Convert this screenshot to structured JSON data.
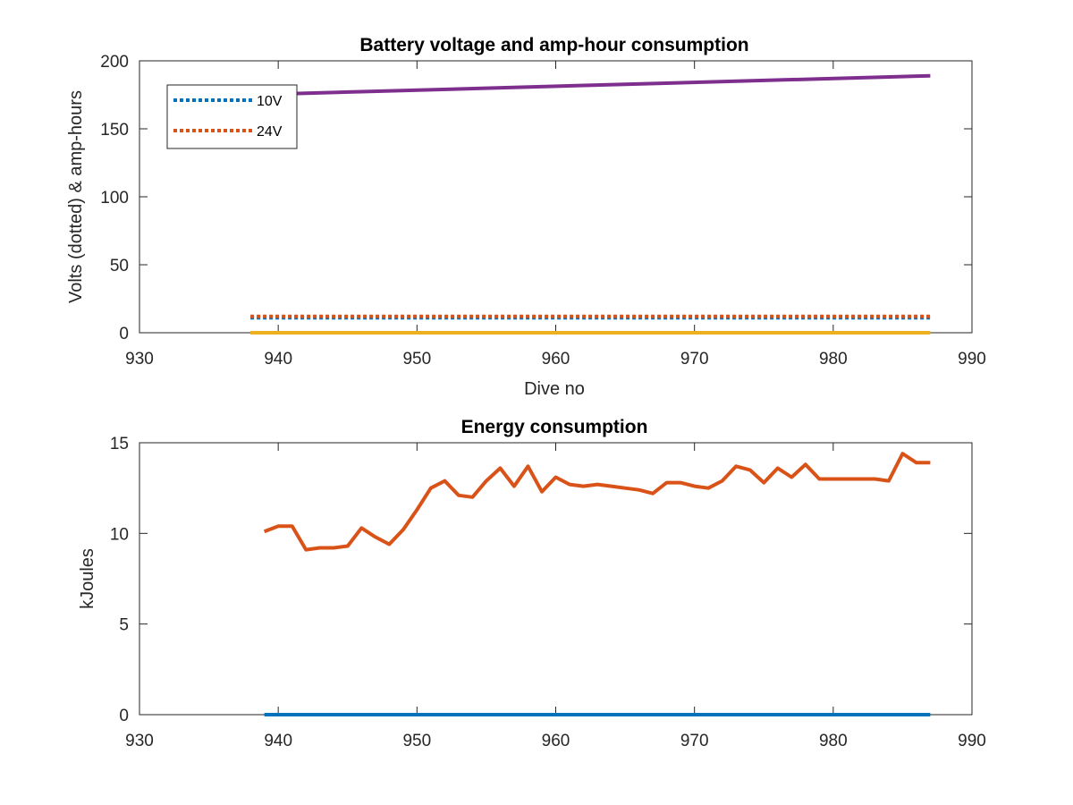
{
  "chart_data": [
    {
      "type": "line",
      "title": "Battery voltage and amp-hour consumption",
      "xlabel": "Dive no",
      "ylabel": "Volts (dotted) & amp-hours",
      "xlim": [
        930,
        990
      ],
      "ylim": [
        0,
        200
      ],
      "xticks": [
        930,
        940,
        950,
        960,
        970,
        980,
        990
      ],
      "yticks": [
        0,
        50,
        100,
        150,
        200
      ],
      "legend_position": "top-left",
      "grid": false,
      "series": [
        {
          "name": "10V",
          "style": "dotted",
          "color": "#0072BD",
          "x": [
            938,
            987
          ],
          "y": [
            11,
            11
          ]
        },
        {
          "name": "24V",
          "style": "dotted",
          "color": "#D95319",
          "x": [
            938,
            987
          ],
          "y": [
            12,
            12
          ]
        },
        {
          "name": "",
          "style": "solid",
          "color": "#7E2F8E",
          "x": [
            938,
            987
          ],
          "y": [
            175,
            189
          ]
        },
        {
          "name": "",
          "style": "solid",
          "color": "#EDB120",
          "x": [
            938,
            987
          ],
          "y": [
            0,
            0
          ]
        }
      ]
    },
    {
      "type": "line",
      "title": "Energy consumption",
      "xlabel": "",
      "ylabel": "kJoules",
      "xlim": [
        930,
        990
      ],
      "ylim": [
        0,
        15
      ],
      "xticks": [
        930,
        940,
        950,
        960,
        970,
        980,
        990
      ],
      "yticks": [
        0,
        5,
        10,
        15
      ],
      "grid": false,
      "series": [
        {
          "name": "",
          "style": "solid",
          "color": "#0072BD",
          "x": [
            939,
            987
          ],
          "y": [
            0,
            0
          ]
        },
        {
          "name": "",
          "style": "solid",
          "color": "#D95319",
          "x": [
            939,
            940,
            941,
            942,
            943,
            944,
            945,
            946,
            947,
            948,
            949,
            950,
            951,
            952,
            953,
            954,
            955,
            956,
            957,
            958,
            959,
            960,
            961,
            962,
            963,
            964,
            965,
            966,
            967,
            968,
            969,
            970,
            971,
            972,
            973,
            974,
            975,
            976,
            977,
            978,
            979,
            980,
            981,
            982,
            983,
            984,
            985,
            986,
            987
          ],
          "y": [
            10.1,
            10.4,
            10.4,
            9.1,
            9.2,
            9.2,
            9.3,
            10.3,
            9.8,
            9.4,
            10.2,
            11.3,
            12.5,
            12.9,
            12.1,
            12.0,
            12.9,
            13.6,
            12.6,
            13.7,
            12.3,
            13.1,
            12.7,
            12.6,
            12.7,
            12.6,
            12.5,
            12.4,
            12.2,
            12.8,
            12.8,
            12.6,
            12.5,
            12.9,
            13.7,
            13.5,
            12.8,
            13.6,
            13.1,
            13.8,
            13.0,
            13.0,
            13.0,
            13.0,
            13.0,
            12.9,
            14.4,
            13.9,
            13.9
          ]
        }
      ]
    }
  ]
}
